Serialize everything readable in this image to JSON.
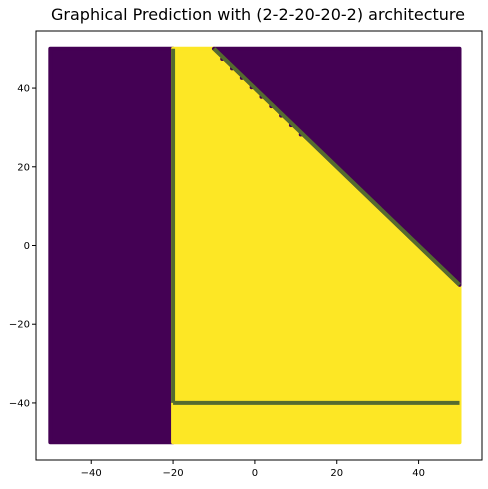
{
  "chart_data": {
    "type": "scatter",
    "title": "Graphical Prediction with (2-2-20-20-2) architecture",
    "xlabel": "",
    "ylabel": "",
    "xlim": [
      -53.5,
      55.5
    ],
    "ylim": [
      -54.5,
      54.5
    ],
    "xticks": [
      -40,
      -20,
      0,
      20,
      40
    ],
    "yticks": [
      -40,
      -20,
      0,
      20,
      40
    ],
    "grid": false,
    "legend": "none",
    "grid_points": {
      "x_range": [
        -50,
        50
      ],
      "y_range": [
        -50,
        50
      ],
      "class_colors": {
        "0": "#440154",
        "1": "#fde725"
      }
    },
    "class_regions": [
      {
        "class": 0,
        "description_polygon": [
          [
            -50,
            -50
          ],
          [
            -20,
            -50
          ],
          [
            -20,
            50
          ],
          [
            -50,
            50
          ]
        ]
      },
      {
        "class": 1,
        "description_polygon": [
          [
            -20,
            -50
          ],
          [
            50,
            -50
          ],
          [
            50,
            -10
          ],
          [
            -10,
            50
          ],
          [
            -20,
            50
          ]
        ]
      },
      {
        "class": 0,
        "description_polygon": [
          [
            -10,
            50
          ],
          [
            50,
            50
          ],
          [
            50,
            -10
          ]
        ]
      }
    ],
    "decision_lines": [
      {
        "name": "boundary-vertical",
        "points": [
          [
            -20,
            50
          ],
          [
            -20,
            -40
          ]
        ]
      },
      {
        "name": "boundary-horizontal",
        "points": [
          [
            -20,
            -40
          ],
          [
            50,
            -40
          ]
        ]
      },
      {
        "name": "boundary-diagonal",
        "points": [
          [
            -10,
            50
          ],
          [
            50,
            -10
          ]
        ]
      }
    ],
    "colors": {
      "boundary": "#556b2f",
      "axis": "#000000",
      "class0": "#440154",
      "class1": "#fde725"
    }
  }
}
